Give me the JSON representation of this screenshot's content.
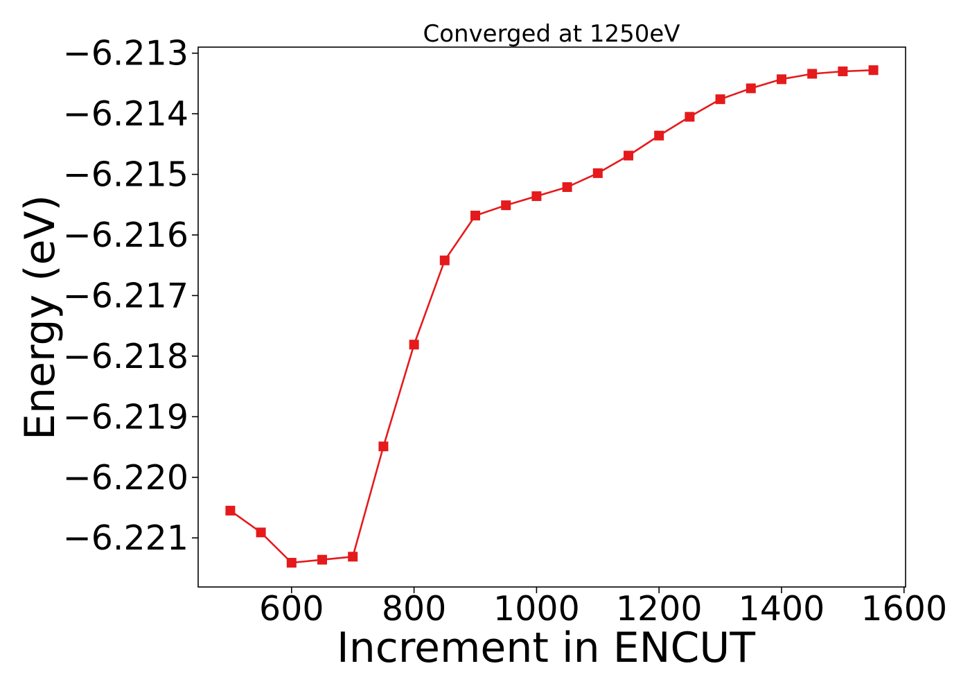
{
  "chart_data": {
    "type": "line",
    "title": "Converged at 1250eV",
    "xlabel": "Increment in ENCUT",
    "ylabel": "Energy (eV)",
    "xlim": [
      447.5,
      1602.5
    ],
    "ylim": [
      -6.22181,
      -6.2129
    ],
    "xticks": [
      600,
      800,
      1000,
      1200,
      1400,
      1600
    ],
    "yticks": [
      -6.213,
      -6.214,
      -6.215,
      -6.216,
      -6.217,
      -6.218,
      -6.219,
      -6.22,
      -6.221
    ],
    "xtick_labels": [
      "600",
      "800",
      "1000",
      "1200",
      "1400",
      "1600"
    ],
    "ytick_labels": [
      "−6.213",
      "−6.214",
      "−6.215",
      "−6.216",
      "−6.217",
      "−6.218",
      "−6.219",
      "−6.220",
      "−6.221"
    ],
    "grid": false,
    "legend": false,
    "color": "#e41a1c",
    "marker": "square",
    "x": [
      500,
      550,
      600,
      650,
      700,
      750,
      800,
      850,
      900,
      950,
      1000,
      1050,
      1100,
      1150,
      1200,
      1250,
      1300,
      1350,
      1400,
      1450,
      1500,
      1550
    ],
    "y": [
      -6.22055,
      -6.22091,
      -6.22141,
      -6.22136,
      -6.22131,
      -6.21949,
      -6.21781,
      -6.21642,
      -6.21568,
      -6.21551,
      -6.21536,
      -6.21521,
      -6.21498,
      -6.21469,
      -6.21436,
      -6.21405,
      -6.21376,
      -6.21358,
      -6.21343,
      -6.21334,
      -6.2133,
      -6.21328
    ]
  }
}
